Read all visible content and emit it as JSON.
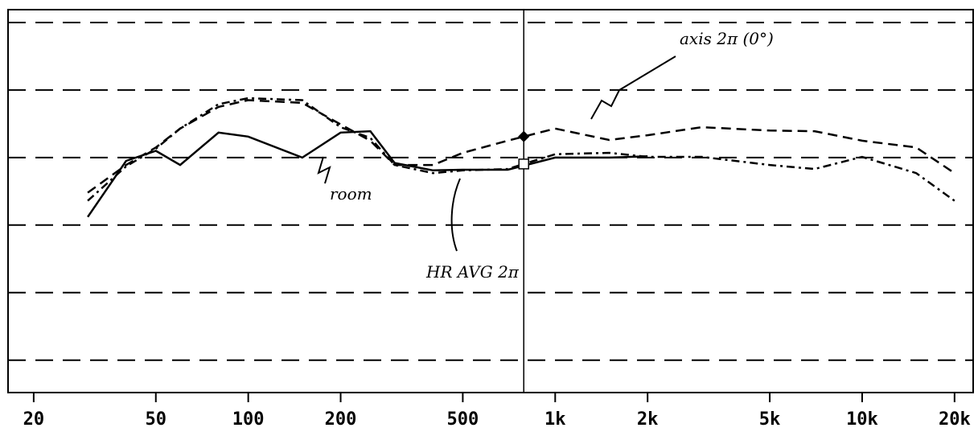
{
  "chart_data": {
    "type": "line",
    "xscale": "log",
    "xlim": [
      16.5,
      23000
    ],
    "ylim": [
      5.2,
      61.9
    ],
    "xticks": [
      20,
      50,
      100,
      200,
      500,
      {
        "value": 1000,
        "label": "1k"
      },
      {
        "value": 2000,
        "label": "2k"
      },
      {
        "value": 5000,
        "label": "5k"
      },
      {
        "value": 10000,
        "label": "10k"
      },
      {
        "value": 20000,
        "label": "20k"
      }
    ],
    "yticks": [
      10,
      20,
      30,
      40,
      50,
      60
    ],
    "grid": true,
    "cursor": 790,
    "x": [
      30,
      40,
      50,
      60,
      80,
      100,
      150,
      200,
      250,
      300,
      400,
      500,
      700,
      1000,
      1500,
      2000,
      3000,
      5000,
      7000,
      10000,
      15000,
      20000
    ],
    "series": [
      {
        "name": "room",
        "color": "#000000",
        "style": "solid",
        "values": [
          31.2,
          39.5,
          41.0,
          38.9,
          43.7,
          43.1,
          40.0,
          43.7,
          43.9,
          39.2,
          38.1,
          38.2,
          38.2,
          40.0,
          40.0,
          40.2,
          null,
          null,
          null,
          null,
          null,
          null
        ]
      },
      {
        "name": "axis 2π (0°)",
        "color": "#000000",
        "style": "dashed",
        "values": [
          34.8,
          38.9,
          41.5,
          44.3,
          47.5,
          48.5,
          48.1,
          44.9,
          42.5,
          38.9,
          38.9,
          40.7,
          42.5,
          44.3,
          42.6,
          43.3,
          44.5,
          44.0,
          43.9,
          42.5,
          41.5,
          37.7
        ]
      },
      {
        "name": "HR AVG 2π",
        "color": "#000000",
        "style": "dashdot",
        "values": [
          33.6,
          38.7,
          41.3,
          44.3,
          47.9,
          48.8,
          48.5,
          44.5,
          42.9,
          38.9,
          37.7,
          38.1,
          38.3,
          40.5,
          40.7,
          40.1,
          40.1,
          38.9,
          38.3,
          40.1,
          37.7,
          33.6
        ]
      }
    ]
  }
}
